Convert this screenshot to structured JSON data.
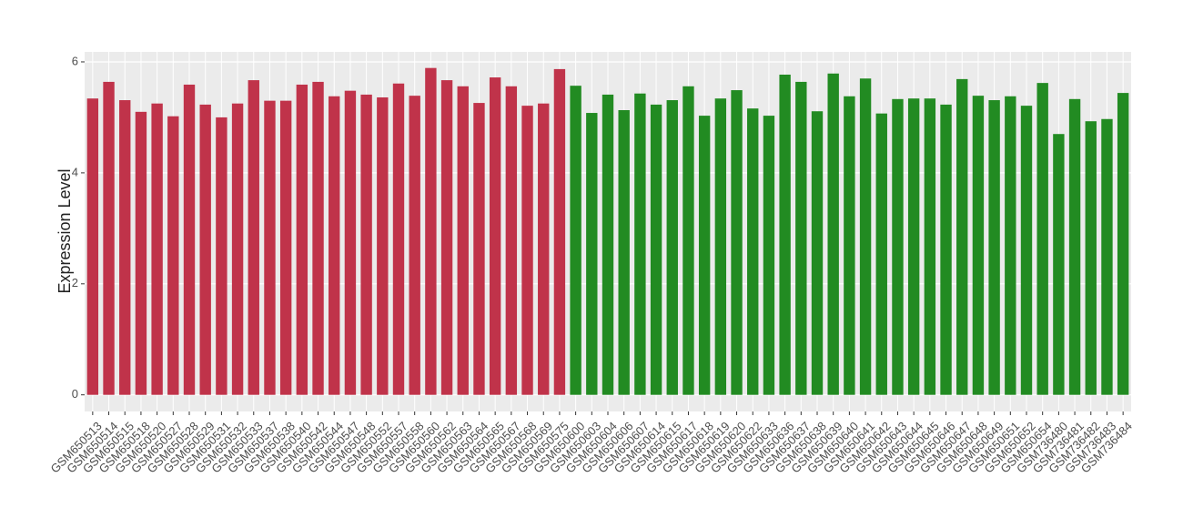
{
  "chart_data": {
    "type": "bar",
    "y_label": "Expression Level",
    "categories": [
      "GSM650513",
      "GSM650514",
      "GSM650515",
      "GSM650518",
      "GSM650520",
      "GSM650527",
      "GSM650528",
      "GSM650529",
      "GSM650531",
      "GSM650532",
      "GSM650533",
      "GSM650537",
      "GSM650538",
      "GSM650540",
      "GSM650542",
      "GSM650544",
      "GSM650547",
      "GSM650548",
      "GSM650552",
      "GSM650557",
      "GSM650558",
      "GSM650560",
      "GSM650562",
      "GSM650563",
      "GSM650564",
      "GSM650565",
      "GSM650567",
      "GSM650568",
      "GSM650569",
      "GSM650575",
      "GSM650600",
      "GSM650603",
      "GSM650604",
      "GSM650606",
      "GSM650607",
      "GSM650614",
      "GSM650615",
      "GSM650617",
      "GSM650618",
      "GSM650619",
      "GSM650620",
      "GSM650622",
      "GSM650633",
      "GSM650636",
      "GSM650637",
      "GSM650638",
      "GSM650639",
      "GSM650640",
      "GSM650641",
      "GSM650642",
      "GSM650643",
      "GSM650644",
      "GSM650645",
      "GSM650646",
      "GSM650647",
      "GSM650648",
      "GSM650649",
      "GSM650651",
      "GSM650652",
      "GSM650654",
      "GSM736480",
      "GSM736481",
      "GSM736482",
      "GSM736483",
      "GSM736484"
    ],
    "values": [
      5.34,
      5.64,
      5.31,
      5.1,
      5.25,
      5.02,
      5.59,
      5.23,
      5.0,
      5.25,
      5.67,
      5.3,
      5.3,
      5.59,
      5.64,
      5.38,
      5.48,
      5.41,
      5.36,
      5.61,
      5.39,
      5.89,
      5.67,
      5.56,
      5.26,
      5.72,
      5.56,
      5.21,
      5.25,
      5.87,
      5.57,
      5.08,
      5.41,
      5.13,
      5.43,
      5.23,
      5.31,
      5.56,
      5.03,
      5.34,
      5.49,
      5.16,
      5.03,
      5.77,
      5.64,
      5.11,
      5.79,
      5.38,
      5.7,
      5.07,
      5.33,
      5.34,
      5.34,
      5.23,
      5.69,
      5.39,
      5.31,
      5.38,
      5.21,
      5.62,
      4.7,
      5.33,
      4.93,
      4.97,
      5.44
    ],
    "colors": [
      "#c0334a",
      "#c0334a",
      "#c0334a",
      "#c0334a",
      "#c0334a",
      "#c0334a",
      "#c0334a",
      "#c0334a",
      "#c0334a",
      "#c0334a",
      "#c0334a",
      "#c0334a",
      "#c0334a",
      "#c0334a",
      "#c0334a",
      "#c0334a",
      "#c0334a",
      "#c0334a",
      "#c0334a",
      "#c0334a",
      "#c0334a",
      "#c0334a",
      "#c0334a",
      "#c0334a",
      "#c0334a",
      "#c0334a",
      "#c0334a",
      "#c0334a",
      "#c0334a",
      "#c0334a",
      "#228b22",
      "#228b22",
      "#228b22",
      "#228b22",
      "#228b22",
      "#228b22",
      "#228b22",
      "#228b22",
      "#228b22",
      "#228b22",
      "#228b22",
      "#228b22",
      "#228b22",
      "#228b22",
      "#228b22",
      "#228b22",
      "#228b22",
      "#228b22",
      "#228b22",
      "#228b22",
      "#228b22",
      "#228b22",
      "#228b22",
      "#228b22",
      "#228b22",
      "#228b22",
      "#228b22",
      "#228b22",
      "#228b22",
      "#228b22",
      "#228b22",
      "#228b22",
      "#228b22",
      "#228b22",
      "#228b22"
    ],
    "ylim": [
      -0.3,
      6.18
    ],
    "yticks": [
      0,
      2,
      4,
      6
    ],
    "grid": true
  }
}
